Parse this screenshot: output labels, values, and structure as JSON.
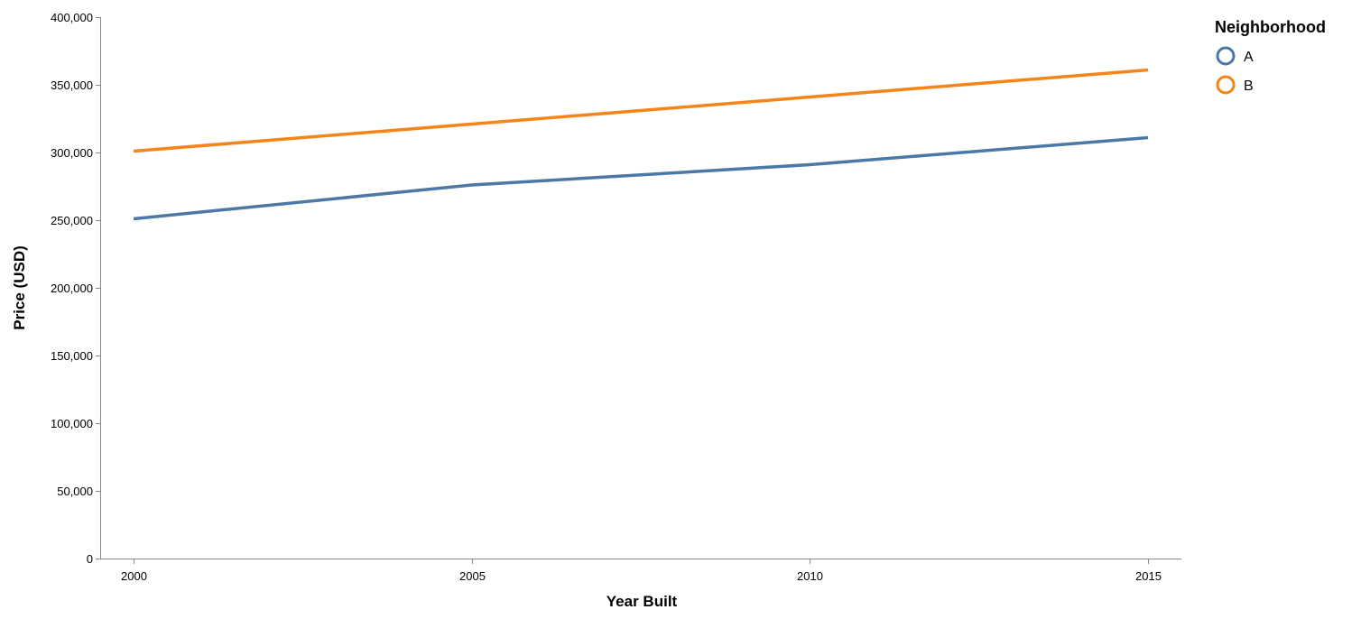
{
  "chart_data": {
    "type": "line",
    "xlabel": "Year Built",
    "ylabel": "Price (USD)",
    "x": [
      2000,
      2005,
      2010,
      2015
    ],
    "x_ticks": [
      "2000",
      "2005",
      "2010",
      "2015"
    ],
    "ylim": [
      0,
      400000
    ],
    "y_ticks": [
      "0",
      "50,000",
      "100,000",
      "150,000",
      "200,000",
      "250,000",
      "300,000",
      "350,000",
      "400,000"
    ],
    "grid": false,
    "legend": {
      "title": "Neighborhood",
      "placement": "top-right"
    },
    "series": [
      {
        "name": "A",
        "color": "#4c78a8",
        "values": [
          251000,
          276000,
          291000,
          311000
        ]
      },
      {
        "name": "B",
        "color": "#f58518",
        "values": [
          301000,
          321000,
          341000,
          361000
        ]
      }
    ]
  }
}
